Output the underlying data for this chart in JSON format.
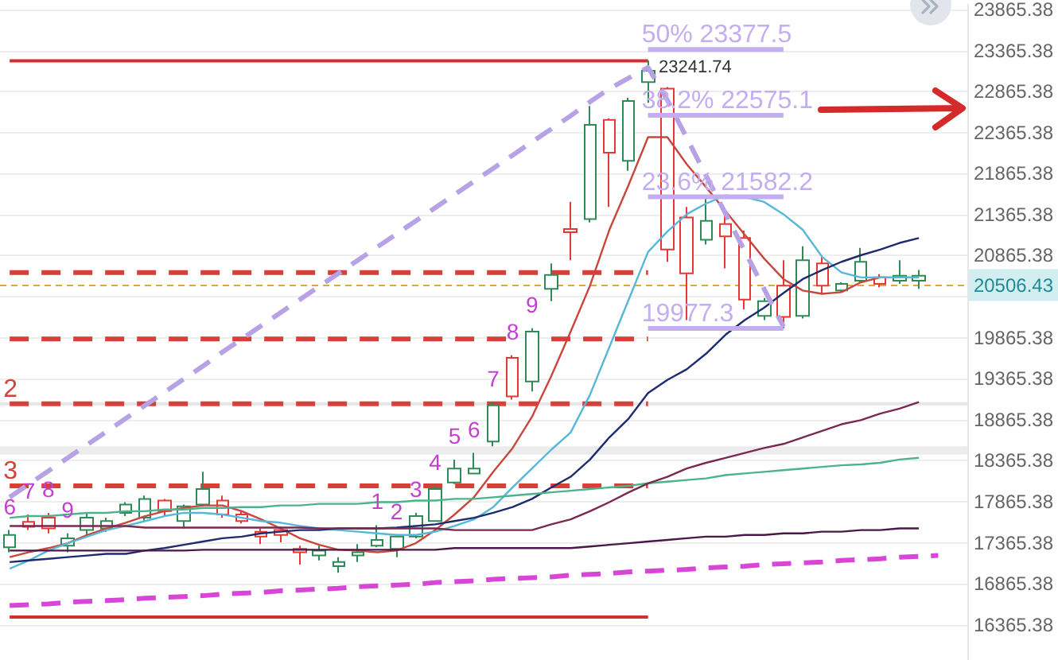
{
  "chart_data": {
    "type": "candlestick",
    "tick_labels": "y",
    "grid": "y",
    "marker": "none",
    "categories": [
      null,
      null,
      null,
      null,
      null,
      null,
      null,
      null,
      null,
      null,
      null,
      null,
      null,
      null,
      null,
      null,
      null,
      null,
      null,
      null,
      null,
      null,
      null,
      null,
      null,
      null,
      null,
      null,
      null,
      null,
      null,
      null,
      null,
      null,
      null,
      null,
      null,
      null,
      null,
      null,
      null,
      null,
      null,
      null,
      null,
      null,
      null,
      null,
      null,
      null
    ],
    "ohlc": [
      [
        17310,
        17520,
        17250,
        17460
      ],
      [
        17620,
        17710,
        17520,
        17560
      ],
      [
        17670,
        17730,
        17480,
        17540
      ],
      [
        17330,
        17480,
        17250,
        17420
      ],
      [
        17520,
        17730,
        17440,
        17670
      ],
      [
        17540,
        17670,
        17500,
        17630
      ],
      [
        17730,
        17860,
        17690,
        17830
      ],
      [
        17670,
        17940,
        17630,
        17900
      ],
      [
        17880,
        17900,
        17690,
        17750
      ],
      [
        17630,
        17830,
        17540,
        17810
      ],
      [
        17830,
        18230,
        17810,
        18020
      ],
      [
        17880,
        17940,
        17670,
        17710
      ],
      [
        17710,
        17750,
        17600,
        17630
      ],
      [
        17500,
        17540,
        17350,
        17440
      ],
      [
        17520,
        17560,
        17370,
        17460
      ],
      [
        17290,
        17330,
        17100,
        17250
      ],
      [
        17210,
        17330,
        17150,
        17270
      ],
      [
        17080,
        17190,
        17000,
        17130
      ],
      [
        17210,
        17350,
        17130,
        17250
      ],
      [
        17330,
        17580,
        17310,
        17400
      ],
      [
        17290,
        17460,
        17190,
        17440
      ],
      [
        17440,
        17730,
        17420,
        17690
      ],
      [
        17630,
        18060,
        17620,
        18020
      ],
      [
        18100,
        18380,
        18080,
        18270
      ],
      [
        18210,
        18460,
        18210,
        18270
      ],
      [
        18600,
        19080,
        18540,
        19040
      ],
      [
        19620,
        19650,
        19110,
        19150
      ],
      [
        19330,
        19980,
        19210,
        19940
      ],
      [
        20460,
        20770,
        20310,
        20630
      ],
      [
        21190,
        21520,
        20810,
        21150
      ],
      [
        21310,
        22690,
        21270,
        22460
      ],
      [
        22520,
        22540,
        21460,
        22120
      ],
      [
        22020,
        22790,
        21900,
        22750
      ],
      [
        22980,
        23241.74,
        22730,
        23120
      ],
      [
        22900,
        22920,
        20790,
        20940
      ],
      [
        21330,
        21460,
        20080,
        20650
      ],
      [
        21060,
        21560,
        21000,
        21290
      ],
      [
        21250,
        21380,
        20710,
        21100
      ],
      [
        21080,
        21170,
        20210,
        20330
      ],
      [
        20130,
        20350,
        20080,
        20310
      ],
      [
        20500,
        20810,
        19977.3,
        20120
      ],
      [
        20130,
        20980,
        20100,
        20810
      ],
      [
        20770,
        20850,
        20400,
        20500
      ],
      [
        20440,
        20540,
        20420,
        20520
      ],
      [
        20560,
        20960,
        20540,
        20790
      ],
      [
        20600,
        20640,
        20480,
        20520
      ],
      [
        20560,
        20810,
        20520,
        20620
      ],
      [
        20560,
        20690,
        20460,
        20620
      ],
      null,
      null
    ],
    "colors": [
      "#2e8b57",
      "#e53935",
      "#e53935",
      "#2e8b57",
      "#2e8b57",
      "#2e8b57",
      "#2e8b57",
      "#2e8b57",
      "#e53935",
      "#2e8b57",
      "#2e8b57",
      "#e53935",
      "#e53935",
      "#e53935",
      "#e53935",
      "#e53935",
      "#2e8b57",
      "#2e8b57",
      "#2e8b57",
      "#2e8b57",
      "#2e8b57",
      "#2e8b57",
      "#2e8b57",
      "#2e8b57",
      "#2e8b57",
      "#2e8b57",
      "#e53935",
      "#2e8b57",
      "#2e8b57",
      "#e53935",
      "#2e8b57",
      "#e53935",
      "#2e8b57",
      "#2e8b57",
      "#e53935",
      "#e53935",
      "#2e8b57",
      "#e53935",
      "#e53935",
      "#2e8b57",
      "#e53935",
      "#2e8b57",
      "#e53935",
      "#2e8b57",
      "#2e8b57",
      "#e53935",
      "#2e8b57",
      "#2e8b57",
      null,
      null
    ],
    "value_labels": [
      "6",
      "7",
      "8",
      "9",
      null,
      null,
      null,
      null,
      null,
      null,
      null,
      null,
      null,
      null,
      null,
      null,
      null,
      null,
      null,
      "1",
      "2",
      "3",
      "4",
      "5",
      "6",
      "7",
      "8",
      "9",
      null,
      null,
      null,
      null,
      null,
      null,
      null,
      null,
      null,
      null,
      null,
      null,
      null,
      null,
      null,
      null,
      null,
      null,
      null,
      null,
      null,
      null
    ],
    "series": [
      {
        "type": "line",
        "color": "#c9463d",
        "values": [
          17190,
          17250,
          17300,
          17360,
          17460,
          17540,
          17610,
          17690,
          17750,
          17790,
          17820,
          17820,
          17750,
          17650,
          17540,
          17420,
          17340,
          17280,
          17270,
          17250,
          17270,
          17360,
          17520,
          17710,
          17920,
          18230,
          18520,
          18900,
          19400,
          19940,
          20500,
          21180,
          21730,
          22310,
          22310,
          21980,
          21700,
          21410,
          21120,
          20830,
          20580,
          20440,
          20400,
          20420,
          20540,
          20600,
          20600,
          20600,
          null,
          null
        ]
      },
      {
        "type": "line",
        "color": "#55b8d8",
        "values": [
          17050,
          17150,
          17270,
          17360,
          17440,
          17520,
          17570,
          17630,
          17690,
          17730,
          17730,
          17710,
          17670,
          17630,
          17610,
          17570,
          17540,
          17520,
          17500,
          17480,
          17460,
          17460,
          17500,
          17570,
          17650,
          17800,
          18040,
          18270,
          18500,
          18710,
          19170,
          19750,
          20330,
          20910,
          21160,
          21370,
          21500,
          21600,
          21580,
          21520,
          21370,
          21180,
          20850,
          20660,
          20600,
          20600,
          20600,
          20600,
          null,
          null
        ]
      },
      {
        "type": "line",
        "color": "#1f2b6e",
        "values": [
          17130,
          17150,
          17170,
          17190,
          17210,
          17230,
          17230,
          17270,
          17300,
          17340,
          17380,
          17420,
          17440,
          17480,
          17500,
          17520,
          17520,
          17540,
          17540,
          17540,
          17550,
          17570,
          17590,
          17630,
          17670,
          17730,
          17800,
          17900,
          18040,
          18170,
          18380,
          18650,
          18880,
          19190,
          19350,
          19480,
          19670,
          19900,
          20080,
          20230,
          20410,
          20580,
          20690,
          20790,
          20870,
          20940,
          21020,
          21080,
          null,
          null
        ]
      },
      {
        "type": "line",
        "color": "#4cb38a",
        "values": [
          17670,
          17690,
          17690,
          17710,
          17730,
          17730,
          17750,
          17750,
          17770,
          17770,
          17790,
          17790,
          17800,
          17800,
          17820,
          17820,
          17840,
          17840,
          17840,
          17860,
          17860,
          17880,
          17880,
          17900,
          17900,
          17920,
          17940,
          17960,
          17980,
          18000,
          18020,
          18040,
          18060,
          18090,
          18110,
          18130,
          18150,
          18190,
          18210,
          18230,
          18250,
          18270,
          18290,
          18310,
          18320,
          18340,
          18380,
          18400,
          null,
          null
        ]
      },
      {
        "type": "line",
        "color": "#7a2a4f",
        "values": [
          17570,
          17570,
          17570,
          17570,
          17570,
          17570,
          17570,
          17550,
          17550,
          17550,
          17550,
          17550,
          17550,
          17550,
          17550,
          17550,
          17540,
          17540,
          17540,
          17540,
          17540,
          17540,
          17540,
          17520,
          17520,
          17520,
          17520,
          17520,
          17590,
          17650,
          17750,
          17860,
          17980,
          18090,
          18170,
          18270,
          18340,
          18400,
          18460,
          18520,
          18570,
          18650,
          18730,
          18810,
          18860,
          18940,
          19000,
          19080,
          null,
          null
        ]
      },
      {
        "type": "line",
        "color": "#4b1748",
        "values": [
          17270,
          17270,
          17270,
          17270,
          17270,
          17270,
          17270,
          17270,
          17270,
          17270,
          17280,
          17280,
          17280,
          17280,
          17280,
          17280,
          17280,
          17280,
          17280,
          17280,
          17280,
          17280,
          17280,
          17300,
          17300,
          17300,
          17300,
          17300,
          17300,
          17300,
          17320,
          17340,
          17360,
          17380,
          17400,
          17420,
          17440,
          17440,
          17460,
          17460,
          17480,
          17480,
          17500,
          17500,
          17520,
          17520,
          17540,
          17540,
          null,
          null
        ]
      },
      {
        "type": "line",
        "color": "#d846d8",
        "line_style": "dashed",
        "values": [
          16600,
          16610,
          16620,
          16640,
          16650,
          16660,
          16670,
          16690,
          16700,
          16710,
          16720,
          16740,
          16750,
          16760,
          16780,
          16790,
          16800,
          16810,
          16830,
          16840,
          16850,
          16860,
          16880,
          16890,
          16900,
          16920,
          16930,
          16940,
          16950,
          16970,
          16980,
          16990,
          17010,
          17020,
          17030,
          17040,
          17060,
          17070,
          17080,
          17100,
          17110,
          17120,
          17130,
          17150,
          17160,
          17170,
          17190,
          17200,
          17210,
          null
        ]
      },
      {
        "type": "line",
        "color": "#b8a2e6",
        "line_style": "dashed",
        "values": [
          17920,
          18080,
          18240,
          18400,
          18560,
          18720,
          18880,
          19040,
          19200,
          19360,
          19520,
          19690,
          19850,
          20010,
          20170,
          20330,
          20490,
          20650,
          20810,
          20970,
          21130,
          21290,
          21450,
          21610,
          21770,
          21930,
          22090,
          22250,
          22410,
          22570,
          22740,
          22900,
          23030,
          23160,
          22760,
          22300,
          21840,
          21380,
          20920,
          20460,
          20000,
          null,
          null,
          null,
          null,
          null,
          null,
          null,
          null,
          null
        ]
      },
      {
        "type": "line",
        "color": "#d32f2f",
        "values": [
          23240,
          23240,
          23240,
          23240,
          23240,
          23240,
          23240,
          23240,
          23240,
          23240,
          23240,
          23240,
          23240,
          23240,
          23240,
          23240,
          23240,
          23240,
          23240,
          23240,
          23240,
          23240,
          23240,
          23240,
          23240,
          23240,
          23240,
          23240,
          23240,
          23240,
          23240,
          23240,
          23240,
          23240,
          null,
          null,
          null,
          null,
          null,
          null,
          null,
          null,
          null,
          null,
          null,
          null,
          null,
          null,
          null,
          null
        ]
      },
      {
        "type": "line",
        "color": "#d32f2f",
        "values": [
          16460,
          16460,
          16460,
          16460,
          16460,
          16460,
          16460,
          16460,
          16460,
          16460,
          16460,
          16460,
          16460,
          16460,
          16460,
          16460,
          16460,
          16460,
          16460,
          16460,
          16460,
          16460,
          16460,
          16460,
          16460,
          16460,
          16460,
          16460,
          16460,
          16460,
          16460,
          16460,
          16460,
          16460,
          null,
          null,
          null,
          null,
          null,
          null,
          null,
          null,
          null,
          null,
          null,
          null,
          null,
          null,
          null,
          null
        ]
      },
      {
        "type": "line",
        "color": "#d6403a",
        "line_style": "dashed",
        "values": [
          20660,
          20660,
          20660,
          20660,
          20660,
          20660,
          20660,
          20660,
          20660,
          20660,
          20660,
          20660,
          20660,
          20660,
          20660,
          20660,
          20660,
          20660,
          20660,
          20660,
          20660,
          20660,
          20660,
          20660,
          20660,
          20660,
          20660,
          20660,
          20660,
          20660,
          20660,
          20660,
          20660,
          20660,
          null,
          null,
          null,
          null,
          null,
          null,
          null,
          null,
          null,
          null,
          null,
          null,
          null,
          null,
          null,
          null
        ]
      },
      {
        "type": "line",
        "color": "#d6403a",
        "line_style": "dashed",
        "values": [
          19850,
          19850,
          19850,
          19850,
          19850,
          19850,
          19850,
          19850,
          19850,
          19850,
          19850,
          19850,
          19850,
          19850,
          19850,
          19850,
          19850,
          19850,
          19850,
          19850,
          19850,
          19850,
          19850,
          19850,
          19850,
          19850,
          19850,
          null,
          19850,
          19850,
          19850,
          19850,
          19850,
          19850,
          null,
          null,
          null,
          null,
          null,
          null,
          null,
          null,
          null,
          null,
          null,
          null,
          null,
          null,
          null,
          null
        ]
      },
      {
        "type": "line",
        "name": "2",
        "color": "#d6403a",
        "line_style": "dashed",
        "values": [
          19060,
          19060,
          19060,
          19060,
          19060,
          19060,
          19060,
          19060,
          19060,
          19060,
          19060,
          19060,
          19060,
          19060,
          19060,
          19060,
          19060,
          19060,
          19060,
          19060,
          19060,
          19060,
          19060,
          19060,
          19060,
          19060,
          19060,
          19060,
          19060,
          19060,
          19060,
          19060,
          19060,
          19060,
          null,
          null,
          null,
          null,
          null,
          null,
          null,
          null,
          null,
          null,
          null,
          null,
          null,
          null,
          null,
          null
        ]
      },
      {
        "type": "line",
        "name": "3",
        "color": "#d6403a",
        "line_style": "dashed",
        "values": [
          18060,
          18060,
          18060,
          18060,
          18060,
          18060,
          18060,
          18060,
          18060,
          18060,
          18060,
          18060,
          18060,
          18060,
          18060,
          18060,
          18060,
          18060,
          18060,
          18060,
          18060,
          18060,
          18060,
          18060,
          18060,
          18060,
          18060,
          18060,
          18060,
          18060,
          18060,
          18060,
          18060,
          18060,
          null,
          null,
          null,
          null,
          null,
          null,
          null,
          null,
          null,
          null,
          null,
          null,
          null,
          null,
          null,
          null
        ]
      },
      {
        "type": "line",
        "name": "50% 23377.5",
        "color": "#c2aef0",
        "values": [
          null,
          null,
          null,
          null,
          null,
          null,
          null,
          null,
          null,
          null,
          null,
          null,
          null,
          null,
          null,
          null,
          null,
          null,
          null,
          null,
          null,
          null,
          null,
          null,
          null,
          null,
          null,
          null,
          null,
          null,
          null,
          null,
          null,
          23377.5,
          23377.5,
          23377.5,
          23377.5,
          23377.5,
          23377.5,
          23377.5,
          23377.5,
          null,
          null,
          null,
          null,
          null,
          null,
          null,
          null,
          null
        ]
      },
      {
        "type": "line",
        "name": "38.2% 22575.1",
        "color": "#c2aef0",
        "values": [
          null,
          null,
          null,
          null,
          null,
          null,
          null,
          null,
          null,
          null,
          null,
          null,
          null,
          null,
          null,
          null,
          null,
          null,
          null,
          null,
          null,
          null,
          null,
          null,
          null,
          null,
          null,
          null,
          null,
          null,
          null,
          null,
          null,
          22575.1,
          22575.1,
          22575.1,
          22575.1,
          22575.1,
          22575.1,
          22575.1,
          22575.1,
          null,
          null,
          null,
          null,
          null,
          null,
          null,
          null,
          null
        ]
      },
      {
        "type": "line",
        "name": "23.6% 21582.2",
        "color": "#c2aef0",
        "values": [
          null,
          null,
          null,
          null,
          null,
          null,
          null,
          null,
          null,
          null,
          null,
          null,
          null,
          null,
          null,
          null,
          null,
          null,
          null,
          null,
          null,
          null,
          null,
          null,
          null,
          null,
          null,
          null,
          null,
          null,
          null,
          null,
          null,
          21582.2,
          21582.2,
          21582.2,
          21582.2,
          21582.2,
          21582.2,
          21582.2,
          21582.2,
          null,
          null,
          null,
          null,
          null,
          null,
          null,
          null,
          null
        ]
      },
      {
        "type": "line",
        "name": "19977.3",
        "color": "#c2aef0",
        "values": [
          null,
          null,
          null,
          null,
          null,
          null,
          null,
          null,
          null,
          null,
          null,
          null,
          null,
          null,
          null,
          null,
          null,
          null,
          null,
          null,
          null,
          null,
          null,
          null,
          null,
          null,
          null,
          null,
          null,
          null,
          null,
          null,
          null,
          19977.3,
          19977.3,
          19977.3,
          19977.3,
          19977.3,
          19977.3,
          19977.3,
          19977.3,
          null,
          null,
          null,
          null,
          null,
          null,
          null,
          null,
          null
        ]
      }
    ],
    "ref_lines": [
      {
        "axis": "y",
        "value": 20506.43,
        "label": "20506.43",
        "color": "#e8a33d",
        "line_style": "dashed"
      }
    ],
    "bands": [
      {
        "axis": "y",
        "from": 19040,
        "to": 19080,
        "color": "#e6e6e6"
      },
      {
        "axis": "y",
        "from": 18440,
        "to": 18540,
        "color": "#ececec"
      }
    ],
    "annotations": [
      "23241.74"
    ],
    "ylim": [
      15936,
      23929
    ],
    "yticks": [
      16365.38,
      16865.38,
      17365.38,
      17865.38,
      18365.38,
      18865.38,
      19365.38,
      19865.38,
      {
        "value": 20365.38,
        "label": null
      },
      20865.38,
      21365.38,
      21865.38,
      22365.38,
      22865.38,
      23365.38,
      23865.38
    ]
  }
}
